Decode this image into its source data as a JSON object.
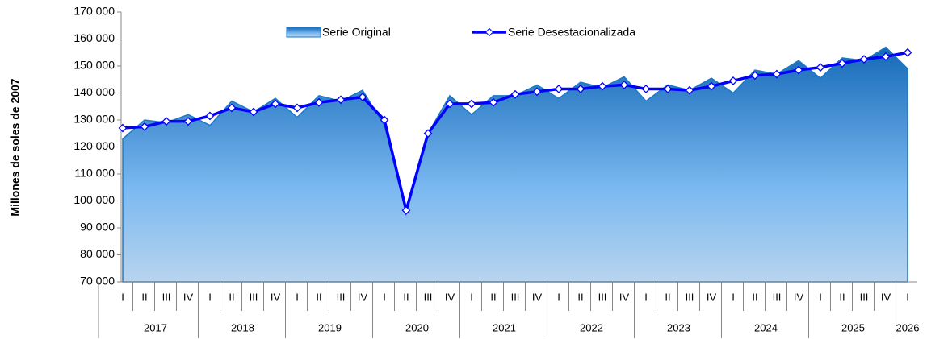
{
  "chart_data": {
    "type": "area-line",
    "ylabel": "Millones de soles de 2007",
    "categories": [
      "I",
      "II",
      "III",
      "IV",
      "I",
      "II",
      "III",
      "IV",
      "I",
      "II",
      "III",
      "IV",
      "I",
      "II",
      "III",
      "IV",
      "I",
      "II",
      "III",
      "IV",
      "I",
      "II",
      "III",
      "IV",
      "I",
      "II",
      "III",
      "IV",
      "I",
      "II",
      "III",
      "IV",
      "I",
      "II",
      "III",
      "IV",
      "I"
    ],
    "years": [
      "2017",
      "2018",
      "2019",
      "2020",
      "2021",
      "2022",
      "2023",
      "2024",
      "2025",
      "2026"
    ],
    "series": [
      {
        "name": "Serie Original",
        "kind": "area",
        "color": "#1a7ac8",
        "values": [
          123000,
          130000,
          129000,
          132000,
          128000,
          137000,
          133000,
          138000,
          131000,
          139000,
          137000,
          141000,
          128000,
          97000,
          125000,
          139000,
          132000,
          139000,
          139000,
          143000,
          138000,
          144000,
          142000,
          146000,
          137000,
          143000,
          141000,
          145500,
          140000,
          148500,
          147000,
          152000,
          145500,
          153000,
          152000,
          157000,
          149000
        ]
      },
      {
        "name": "Serie Desestacionalizada",
        "kind": "line",
        "color": "#0000ff",
        "values": [
          127000,
          127500,
          129500,
          129500,
          131500,
          134500,
          133000,
          136000,
          134500,
          136500,
          137500,
          138500,
          130000,
          96500,
          125000,
          136000,
          136000,
          136500,
          139500,
          140500,
          141500,
          141500,
          142500,
          143000,
          141500,
          141500,
          141000,
          142500,
          144500,
          146500,
          147000,
          148500,
          149500,
          151000,
          152500,
          153500,
          155000
        ]
      }
    ],
    "ylim": [
      70000,
      170000
    ],
    "yticks": [
      {
        "value": 70000,
        "label": "70 000"
      },
      {
        "value": 80000,
        "label": "80 000"
      },
      {
        "value": 90000,
        "label": "90 000"
      },
      {
        "value": 100000,
        "label": "100 000"
      },
      {
        "value": 110000,
        "label": "110 000"
      },
      {
        "value": 120000,
        "label": "120 000"
      },
      {
        "value": 130000,
        "label": "130 000"
      },
      {
        "value": 140000,
        "label": "140 000"
      },
      {
        "value": 150000,
        "label": "150 000"
      },
      {
        "value": 160000,
        "label": "160 000"
      },
      {
        "value": 170000,
        "label": "170 000"
      }
    ],
    "grid": false
  }
}
